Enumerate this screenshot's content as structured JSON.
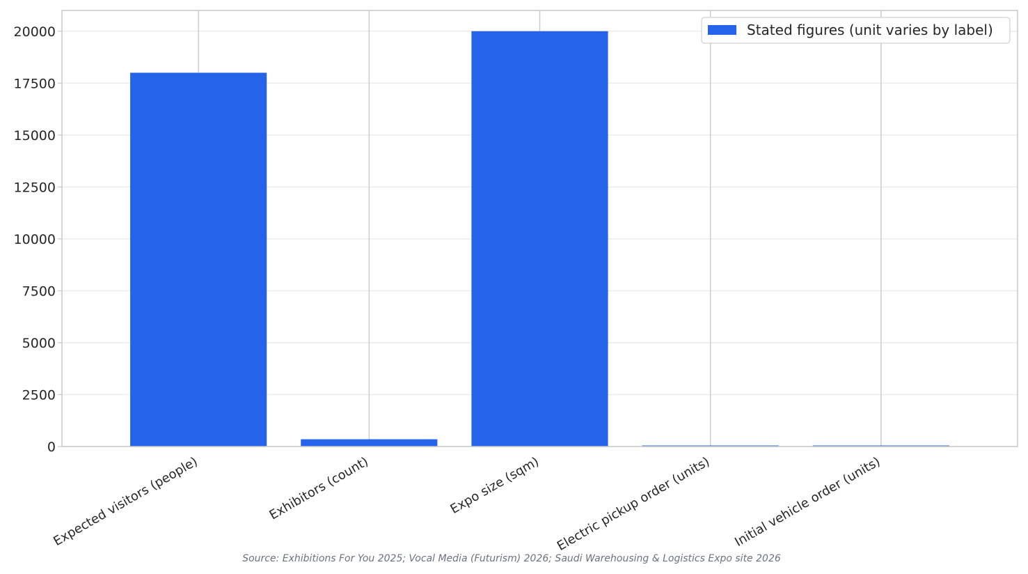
{
  "chart_data": {
    "type": "bar",
    "categories": [
      "Expected visitors (people)",
      "Exhibitors (count)",
      "Expo size (sqm)",
      "Electric pickup order (units)",
      "Initial vehicle order (units)"
    ],
    "series": [
      {
        "name": "Stated figures (unit varies by label)",
        "values": [
          18000,
          350,
          20000,
          50,
          50
        ],
        "color": "#2563eb"
      }
    ],
    "ylim": [
      0,
      21000
    ],
    "yticks": [
      0,
      2500,
      5000,
      7500,
      10000,
      12500,
      15000,
      17500,
      20000
    ],
    "ytick_labels": [
      "0",
      "2500",
      "5000",
      "7500",
      "10000",
      "12500",
      "15000",
      "17500",
      "20000"
    ],
    "title": "",
    "xlabel": "",
    "ylabel": "",
    "grid": true,
    "legend_position": "top-right",
    "source": "Source: Exhibitions For You 2025; Vocal Media (Futurism) 2026; Saudi Warehousing & Logistics Expo site 2026"
  }
}
